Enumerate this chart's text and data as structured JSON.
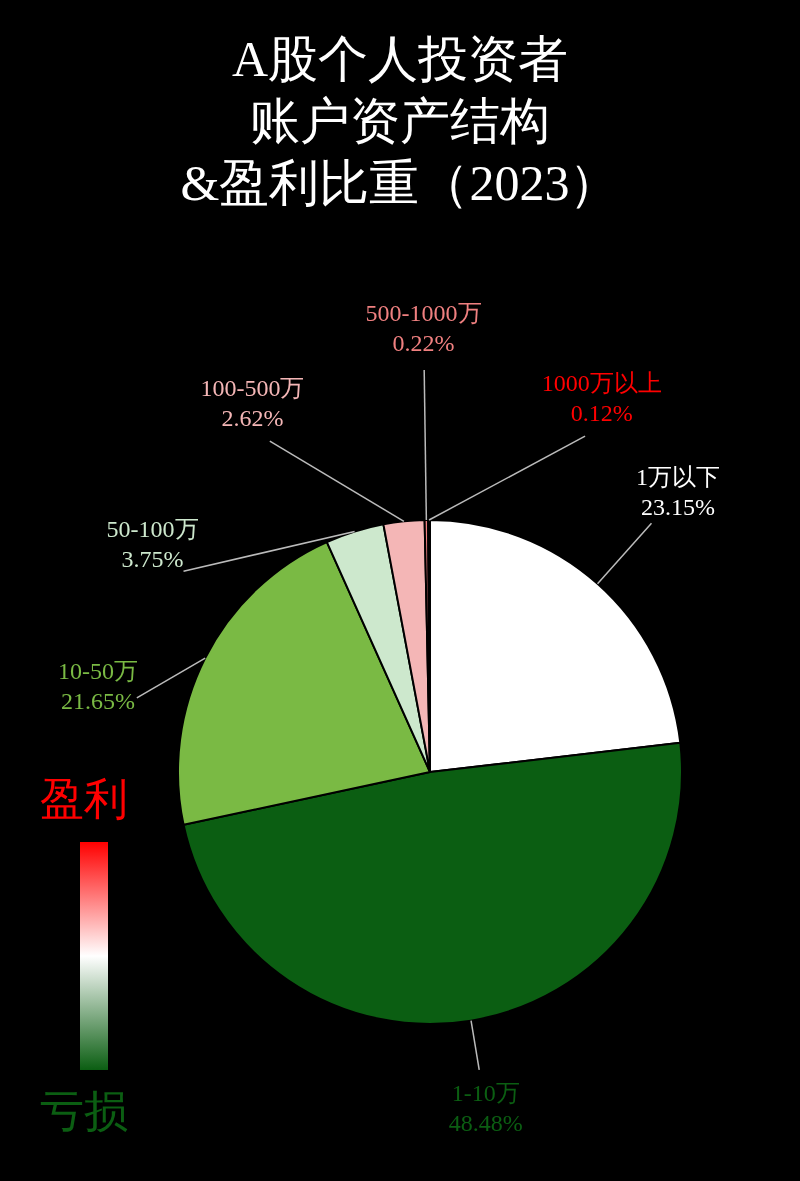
{
  "chart_data": {
    "type": "pie",
    "title": "A股个人投资者账户资产结构",
    "subtitle": "&盈利比重（2023）",
    "categories": [
      "1万以下",
      "1-10万",
      "10-50万",
      "50-100万",
      "100-500万",
      "500-1000万",
      "1000万以上"
    ],
    "values": [
      23.15,
      48.48,
      21.65,
      3.75,
      2.62,
      0.22,
      0.12
    ],
    "value_labels": [
      "23.15%",
      "48.48%",
      "21.65%",
      "3.75%",
      "2.62%",
      "0.22%",
      "0.12%"
    ],
    "colors": [
      "#ffffff",
      "#0b5e12",
      "#7aba44",
      "#cde8cd",
      "#f4b6b6",
      "#f08080",
      "#ff0000"
    ],
    "annotations": [
      "盈利",
      "亏损"
    ],
    "legend": false
  }
}
